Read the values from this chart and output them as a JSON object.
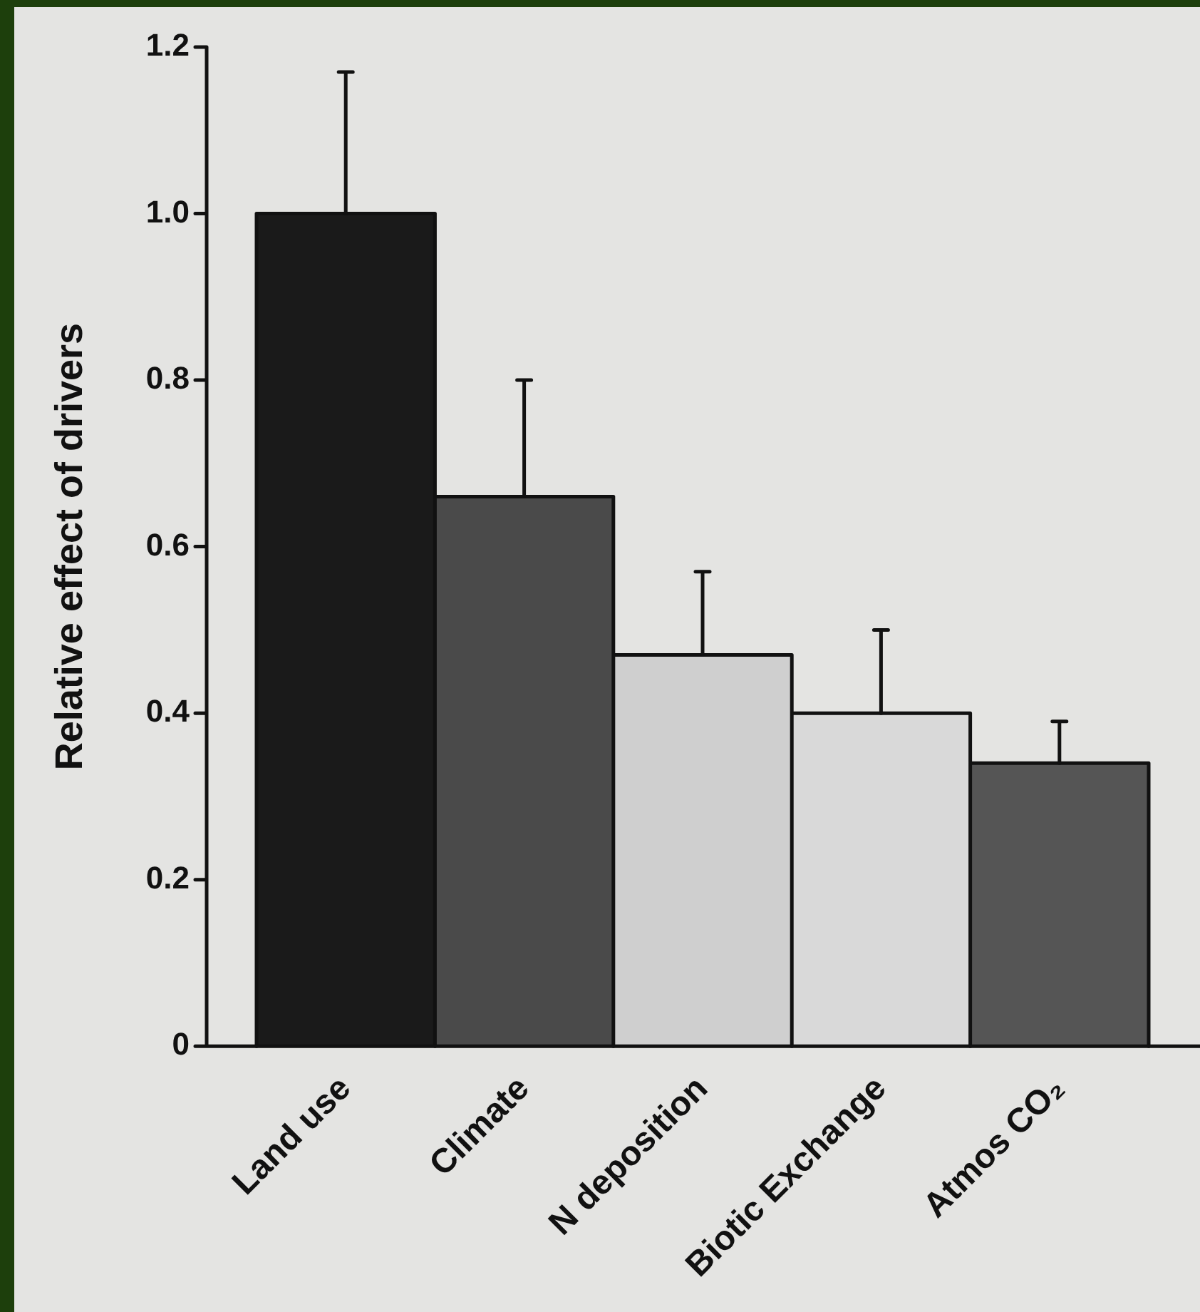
{
  "chart_data": {
    "type": "bar",
    "ylabel": "Relative effect of drivers",
    "categories": [
      "Land use",
      "Climate",
      "N deposition",
      "Biotic Exchange",
      "Atmos CO₂"
    ],
    "values": [
      1.0,
      0.66,
      0.47,
      0.4,
      0.34
    ],
    "colors": [
      "#1a1a1a",
      "#4a4a4a",
      "#cfcfcf",
      "#d9d9d9",
      "#555555"
    ],
    "errors": [
      [
        1.0,
        1.17
      ],
      [
        0.66,
        0.8
      ],
      [
        0.47,
        0.57
      ],
      [
        0.4,
        0.5
      ],
      [
        0.34,
        0.39
      ]
    ],
    "ylim": [
      0,
      1.2
    ],
    "yticks": [
      0,
      {
        "value": 0.2,
        "label": "0.2"
      },
      {
        "value": 0.4,
        "label": "0.4"
      },
      {
        "value": 0.6,
        "label": "0.6"
      },
      {
        "value": 0.8,
        "label": "0.8"
      },
      {
        "value": 1,
        "label": "1.0"
      },
      {
        "value": 1.2,
        "label": "1.2"
      }
    ]
  }
}
